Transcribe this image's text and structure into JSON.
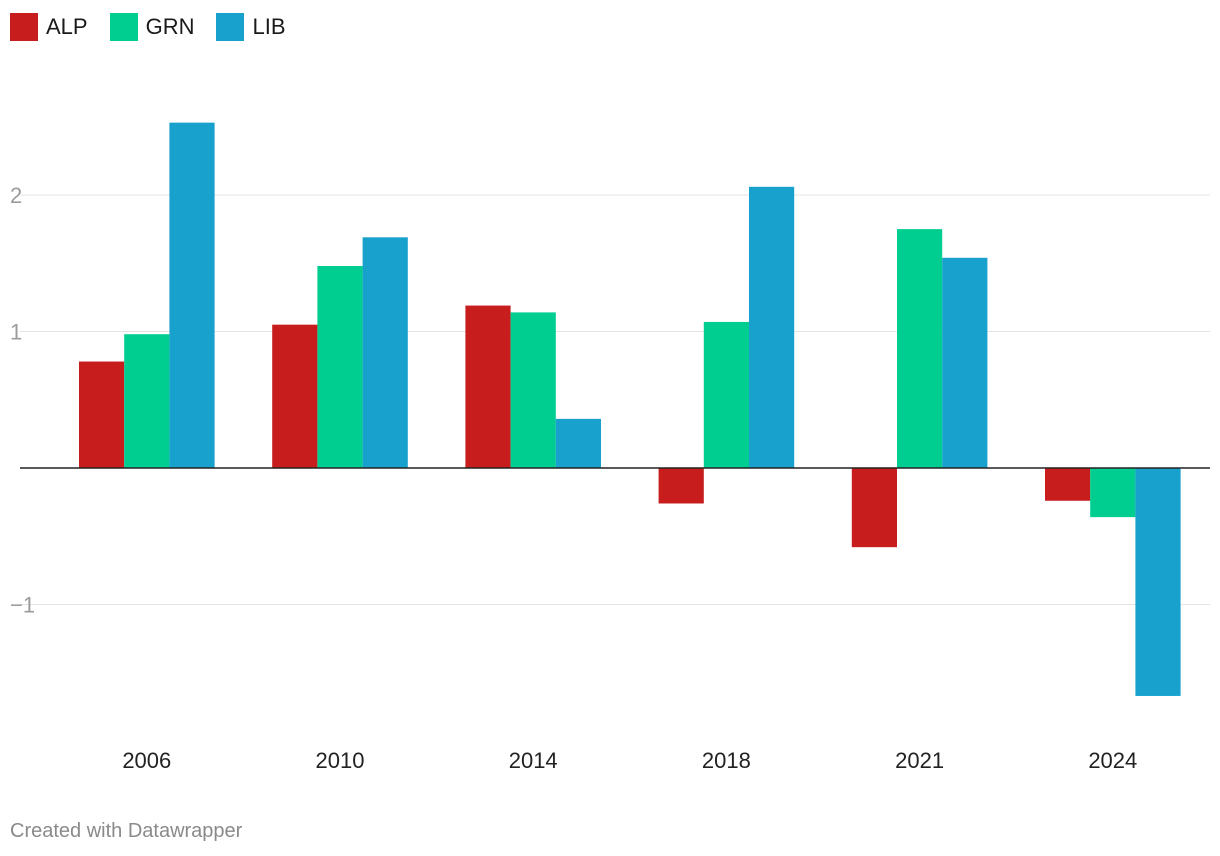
{
  "chart_data": {
    "type": "bar",
    "categories": [
      "2006",
      "2010",
      "2014",
      "2018",
      "2021",
      "2024"
    ],
    "series": [
      {
        "name": "ALP",
        "color": "#c71e1d",
        "values": [
          0.78,
          1.05,
          1.19,
          -0.26,
          -0.58,
          -0.24
        ]
      },
      {
        "name": "GRN",
        "color": "#00ce90",
        "values": [
          0.98,
          1.48,
          1.14,
          1.07,
          1.75,
          -0.36
        ]
      },
      {
        "name": "LIB",
        "color": "#18a1cd",
        "values": [
          2.53,
          1.69,
          0.36,
          2.06,
          1.54,
          -1.67
        ]
      }
    ],
    "yticks": [
      2,
      1,
      -1
    ],
    "ytick_labels": [
      "2",
      "1",
      "−1"
    ],
    "ylim": [
      -1.9,
      2.7
    ],
    "legend_position": "top-left"
  },
  "footer": {
    "credit": "Created with Datawrapper"
  }
}
